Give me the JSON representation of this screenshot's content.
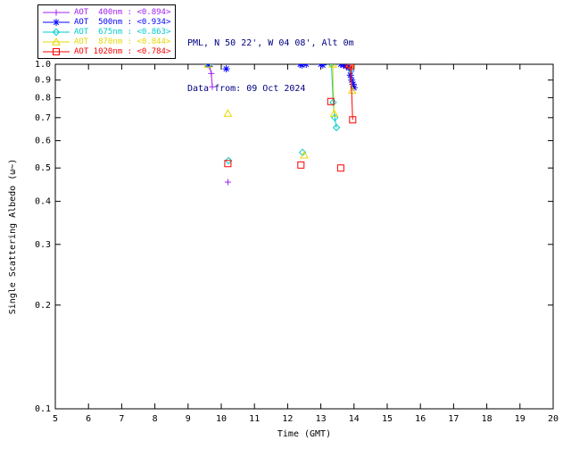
{
  "header": {
    "line1": "PML, N 50 22', W 04 08', Alt 0m",
    "line2": "Data from: 09 Oct 2024"
  },
  "axes": {
    "xlabel": "Time (GMT)",
    "ylabel": "Single Scattering Albedo (ω~)",
    "x_ticks": [
      "5",
      "6",
      "7",
      "8",
      "9",
      "10",
      "11",
      "12",
      "13",
      "14",
      "15",
      "16",
      "17",
      "18",
      "19",
      "20"
    ],
    "y_ticks": [
      "1.0",
      "0.9",
      "0.8",
      "0.7",
      "0.6",
      "0.5",
      "0.4",
      "0.3",
      "0.2",
      "0.1"
    ]
  },
  "colors": {
    "header_text": "#000080",
    "axis": "#000000",
    "background": "#ffffff"
  },
  "chart_data": {
    "type": "scatter",
    "title": "",
    "xlabel": "Time (GMT)",
    "ylabel": "Single Scattering Albedo (ω~)",
    "x_range": [
      5,
      20
    ],
    "y_range": [
      0.1,
      1.0
    ],
    "y_scale": "log",
    "grid": false,
    "legend_position": "top-left",
    "series": [
      {
        "name": "AOT 400nm",
        "mean": "<0.894>",
        "legend_label": "AOT  400nm : <0.894>",
        "color": "#A020F0",
        "marker": "plus",
        "segments": [
          [
            [
              9.55,
              1.0
            ],
            [
              9.6,
              0.995
            ],
            [
              9.65,
              0.985
            ],
            [
              9.7,
              0.94
            ],
            [
              9.73,
              0.86
            ]
          ],
          [
            [
              10.2,
              0.455
            ]
          ],
          [
            [
              13.62,
              1.0
            ],
            [
              13.7,
              0.99
            ],
            [
              13.78,
              0.978
            ],
            [
              13.86,
              0.97
            ],
            [
              13.92,
              0.955
            ]
          ]
        ]
      },
      {
        "name": "AOT 500nm",
        "mean": "<0.934>",
        "legend_label": "AOT  500nm : <0.934>",
        "color": "#0000FF",
        "marker": "asterisk",
        "segments": [
          [
            [
              9.58,
              1.0
            ],
            [
              9.66,
              1.0
            ]
          ],
          [
            [
              10.15,
              0.97
            ]
          ],
          [
            [
              12.38,
              1.0
            ],
            [
              12.43,
              0.995
            ]
          ],
          [
            [
              12.56,
              1.0
            ]
          ],
          [
            [
              13.0,
              1.0
            ],
            [
              13.06,
              0.995
            ]
          ],
          [
            [
              13.6,
              1.0
            ],
            [
              13.68,
              0.995
            ],
            [
              13.76,
              0.99
            ],
            [
              13.84,
              0.985
            ],
            [
              13.89,
              0.93
            ],
            [
              13.93,
              0.9
            ],
            [
              13.97,
              0.875
            ],
            [
              14.0,
              0.855
            ]
          ]
        ]
      },
      {
        "name": "AOT 675nm",
        "mean": "<0.863>",
        "legend_label": "AOT  675nm : <0.863>",
        "color": "#00CCCC",
        "marker": "diamond",
        "segments": [
          [
            [
              9.62,
              1.0
            ]
          ],
          [
            [
              10.22,
              0.525
            ]
          ],
          [
            [
              12.45,
              0.555
            ]
          ],
          [
            [
              13.32,
              1.0
            ],
            [
              13.37,
              0.775
            ],
            [
              13.42,
              0.7
            ],
            [
              13.47,
              0.655
            ]
          ],
          [
            [
              13.9,
              0.965
            ]
          ]
        ]
      },
      {
        "name": "AOT 870nm",
        "mean": "<0.844>",
        "legend_label": "AOT  870nm : <0.844>",
        "color": "#E8D800",
        "marker": "triangle",
        "segments": [
          [
            [
              9.6,
              1.0
            ]
          ],
          [
            [
              10.2,
              0.72
            ]
          ],
          [
            [
              12.5,
              0.545
            ]
          ],
          [
            [
              13.36,
              1.0
            ],
            [
              13.4,
              0.72
            ]
          ],
          [
            [
              13.88,
              1.0
            ],
            [
              13.95,
              0.84
            ]
          ]
        ]
      },
      {
        "name": "AOT 1020nm",
        "mean": "<0.784>",
        "legend_label": "AOT 1020nm : <0.784>",
        "color": "#FF0000",
        "marker": "square",
        "segments": [
          [
            [
              10.2,
              0.515
            ]
          ],
          [
            [
              12.4,
              0.51
            ]
          ],
          [
            [
              13.3,
              0.78
            ]
          ],
          [
            [
              13.6,
              0.5
            ]
          ],
          [
            [
              13.85,
              1.0
            ],
            [
              13.9,
              0.99
            ],
            [
              13.96,
              0.69
            ]
          ]
        ]
      }
    ]
  }
}
